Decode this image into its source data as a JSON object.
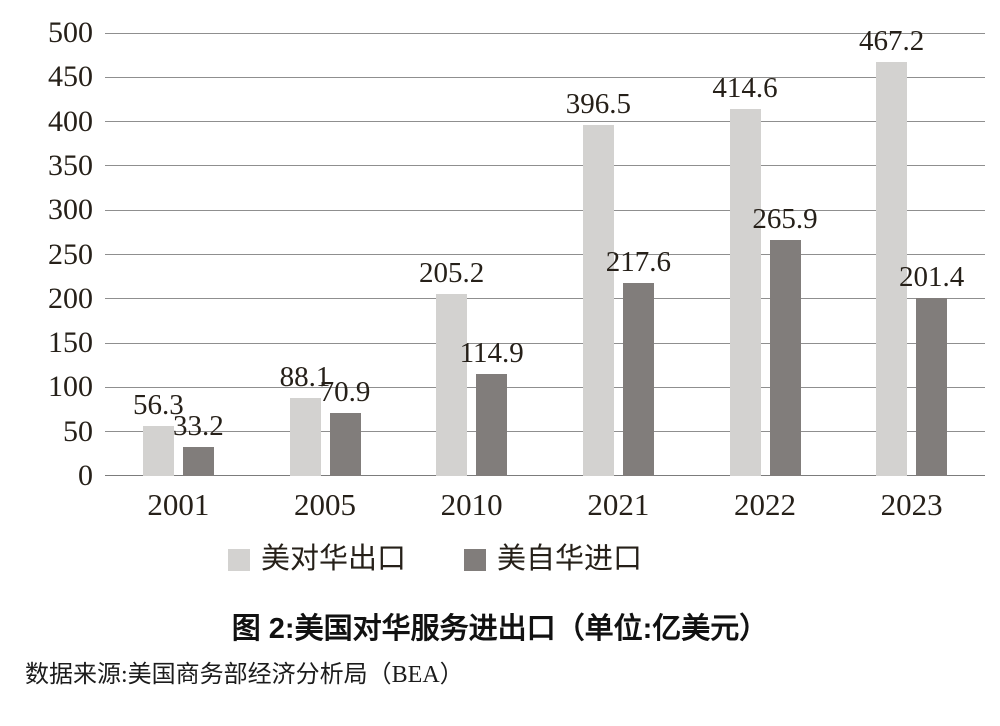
{
  "figure": {
    "title": "图 2:美国对华服务进出口（单位:亿美元）",
    "source": "数据来源:美国商务部经济分析局（BEA）"
  },
  "chart_data": {
    "type": "bar",
    "title": "图 2:美国对华服务进出口（单位:亿美元）",
    "source": "数据来源:美国商务部经济分析局（BEA）",
    "categories": [
      "2001",
      "2005",
      "2010",
      "2021",
      "2022",
      "2023"
    ],
    "series": [
      {
        "name": "美对华出口",
        "color": "#d3d2d0",
        "values": [
          56.3,
          88.1,
          205.2,
          396.5,
          414.6,
          467.2
        ]
      },
      {
        "name": "美自华进口",
        "color": "#817d7b",
        "values": [
          33.2,
          70.9,
          114.9,
          217.6,
          265.9,
          201.4
        ]
      }
    ],
    "ylim": [
      0,
      500
    ],
    "ytick_step": 50,
    "yticks": [
      0,
      50,
      100,
      150,
      200,
      250,
      300,
      350,
      400,
      450,
      500
    ],
    "grid": "horizontal",
    "gridline_color": "#8f8f8f",
    "value_labels": true,
    "legend_position": "bottom",
    "text_color": "#262019"
  }
}
